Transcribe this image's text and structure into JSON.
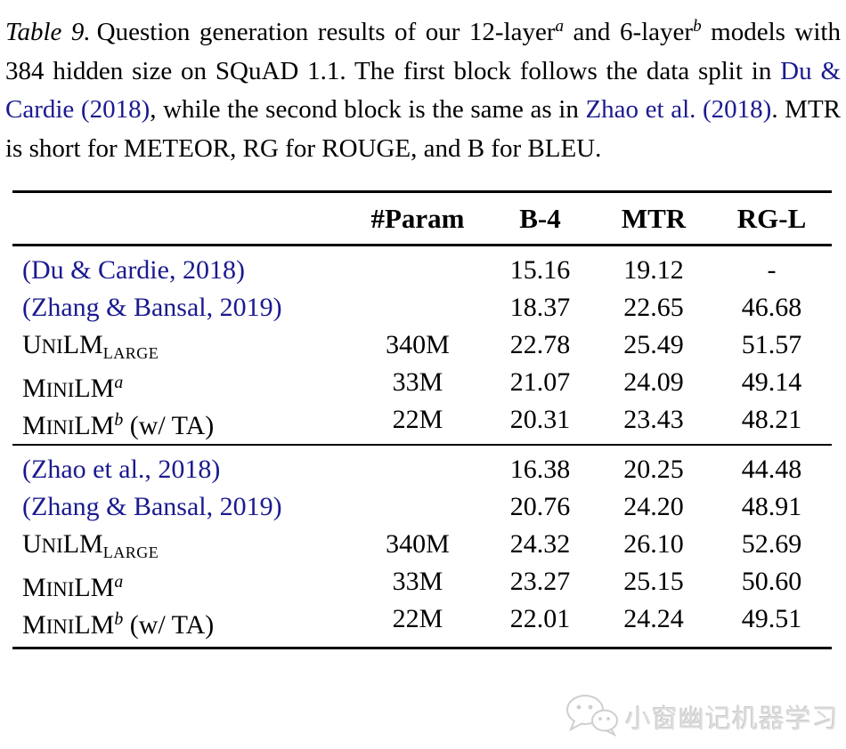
{
  "caption": {
    "segments": [
      {
        "style": "italic",
        "text": "Table 9."
      },
      {
        "style": "plain",
        "text": "Question generation results of our 12-layer"
      },
      {
        "style": "sup",
        "text": "a"
      },
      {
        "style": "plain",
        "text": " and 6-layer"
      },
      {
        "style": "sup",
        "text": "b"
      },
      {
        "style": "plain",
        "text": " models with 384 hidden size on SQuAD 1.1. The first block follows the data split in "
      },
      {
        "style": "link",
        "text": "Du & Cardie (2018)"
      },
      {
        "style": "plain",
        "text": ", while the second block is the same as in "
      },
      {
        "style": "link",
        "text": "Zhao et al. (2018)"
      },
      {
        "style": "plain",
        "text": ". MTR is short for METEOR, RG for ROUGE, and B for BLEU."
      }
    ]
  },
  "table": {
    "columns": [
      "",
      "#Param",
      "B-4",
      "MTR",
      "RG-L"
    ],
    "blocks": [
      {
        "rows": [
          {
            "label": [
              {
                "style": "cite",
                "text": "(Du & Cardie, 2018)"
              }
            ],
            "values": [
              "",
              "15.16",
              "19.12",
              "-"
            ]
          },
          {
            "label": [
              {
                "style": "cite",
                "text": "(Zhang & Bansal, 2019)"
              }
            ],
            "values": [
              "",
              "18.37",
              "22.65",
              "46.68"
            ]
          },
          {
            "label": [
              {
                "style": "cap",
                "text": "U"
              },
              {
                "style": "sc",
                "text": "NI"
              },
              {
                "style": "cap",
                "text": "LM"
              },
              {
                "style": "sub",
                "text": "LARGE"
              }
            ],
            "values": [
              "340M",
              "22.78",
              "25.49",
              "51.57"
            ]
          },
          {
            "label": [
              {
                "style": "cap",
                "text": "M"
              },
              {
                "style": "sc",
                "text": "INI"
              },
              {
                "style": "cap",
                "text": "LM"
              },
              {
                "style": "sup",
                "text": "a"
              }
            ],
            "values": [
              "33M",
              "21.07",
              "24.09",
              "49.14"
            ]
          },
          {
            "label": [
              {
                "style": "cap",
                "text": "M"
              },
              {
                "style": "sc",
                "text": "INI"
              },
              {
                "style": "cap",
                "text": "LM"
              },
              {
                "style": "sup",
                "text": "b"
              },
              {
                "style": "plain",
                "text": " (w/ TA)"
              }
            ],
            "values": [
              "22M",
              "20.31",
              "23.43",
              "48.21"
            ]
          }
        ]
      },
      {
        "rows": [
          {
            "label": [
              {
                "style": "cite",
                "text": "(Zhao et al., 2018)"
              }
            ],
            "values": [
              "",
              "16.38",
              "20.25",
              "44.48"
            ]
          },
          {
            "label": [
              {
                "style": "cite",
                "text": "(Zhang & Bansal, 2019)"
              }
            ],
            "values": [
              "",
              "20.76",
              "24.20",
              "48.91"
            ]
          },
          {
            "label": [
              {
                "style": "cap",
                "text": "U"
              },
              {
                "style": "sc",
                "text": "NI"
              },
              {
                "style": "cap",
                "text": "LM"
              },
              {
                "style": "sub",
                "text": "LARGE"
              }
            ],
            "values": [
              "340M",
              "24.32",
              "26.10",
              "52.69"
            ]
          },
          {
            "label": [
              {
                "style": "cap",
                "text": "M"
              },
              {
                "style": "sc",
                "text": "INI"
              },
              {
                "style": "cap",
                "text": "LM"
              },
              {
                "style": "sup",
                "text": "a"
              }
            ],
            "values": [
              "33M",
              "23.27",
              "25.15",
              "50.60"
            ]
          },
          {
            "label": [
              {
                "style": "cap",
                "text": "M"
              },
              {
                "style": "sc",
                "text": "INI"
              },
              {
                "style": "cap",
                "text": "LM"
              },
              {
                "style": "sup",
                "text": "b"
              },
              {
                "style": "plain",
                "text": " (w/ TA)"
              }
            ],
            "values": [
              "22M",
              "22.01",
              "24.24",
              "49.51"
            ]
          }
        ]
      }
    ]
  },
  "watermark": {
    "icon": "wechat-icon",
    "text": "小窗幽记机器学习"
  },
  "colors": {
    "link": "#1a1a8f",
    "text": "#000000",
    "watermark": "#d9d9d9"
  }
}
